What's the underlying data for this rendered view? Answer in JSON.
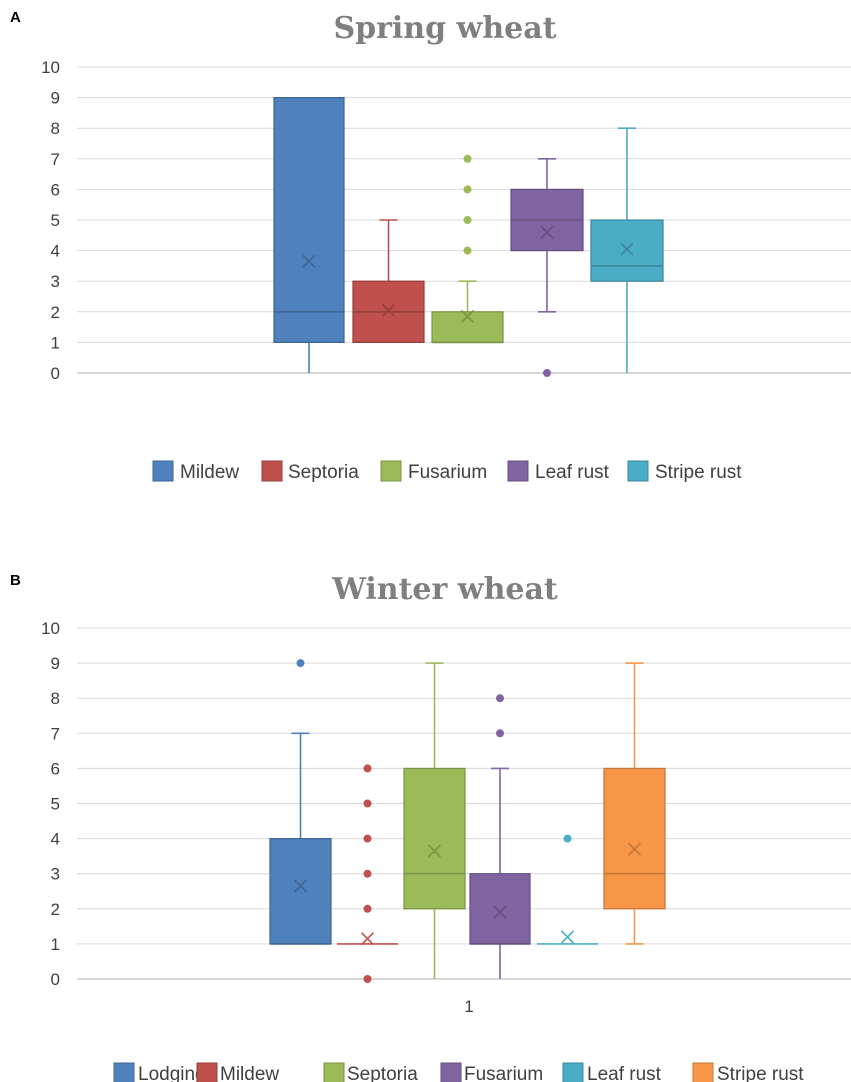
{
  "chart_data": [
    {
      "panel": "A",
      "type": "box",
      "title": "Spring wheat",
      "xlabel": "",
      "ylabel": "",
      "ylim": [
        0,
        10
      ],
      "yticks": [
        0,
        1,
        2,
        3,
        4,
        5,
        6,
        7,
        8,
        9,
        10
      ],
      "xticklabel": "",
      "grid": true,
      "legend_position": "bottom",
      "series": [
        {
          "name": "Mildew",
          "color": "#4f81bd",
          "min": 0,
          "q1": 1,
          "median": 2,
          "q3": 9,
          "max": 9,
          "mean": 3.65,
          "outliers": []
        },
        {
          "name": "Septoria",
          "color": "#c0504d",
          "min": 1,
          "q1": 1,
          "median": 2,
          "q3": 3,
          "max": 5,
          "mean": 2.05,
          "outliers": []
        },
        {
          "name": "Fusarium",
          "color": "#9bbb59",
          "min": 1,
          "q1": 1,
          "median": 1,
          "q3": 2,
          "max": 3,
          "mean": 1.85,
          "outliers": [
            4,
            5,
            6,
            7
          ]
        },
        {
          "name": "Leaf rust",
          "color": "#8064a2",
          "min": 2,
          "q1": 4,
          "median": 5,
          "q3": 6,
          "max": 7,
          "mean": 4.6,
          "outliers": [
            0
          ]
        },
        {
          "name": "Stripe rust",
          "color": "#4bacc6",
          "min": 0,
          "q1": 3,
          "median": 3.5,
          "q3": 5,
          "max": 8,
          "mean": 4.05,
          "outliers": []
        }
      ]
    },
    {
      "panel": "B",
      "type": "box",
      "title": "Winter wheat",
      "xlabel": "",
      "ylabel": "",
      "ylim": [
        0,
        10
      ],
      "yticks": [
        0,
        1,
        2,
        3,
        4,
        5,
        6,
        7,
        8,
        9,
        10
      ],
      "xticklabel": "1",
      "grid": true,
      "legend_position": "bottom",
      "series": [
        {
          "name": "Lodging",
          "color": "#4f81bd",
          "min": 1,
          "q1": 1,
          "median": 1,
          "q3": 4,
          "max": 7,
          "mean": 2.65,
          "outliers": [
            9
          ]
        },
        {
          "name": "Mildew",
          "color": "#c0504d",
          "min": 1,
          "q1": 1,
          "median": 1,
          "q3": 1,
          "max": 1,
          "mean": 1.15,
          "outliers": [
            0,
            2,
            3,
            4,
            5,
            6
          ]
        },
        {
          "name": "Septoria",
          "color": "#9bbb59",
          "min": 0,
          "q1": 2,
          "median": 3,
          "q3": 6,
          "max": 9,
          "mean": 3.65,
          "outliers": []
        },
        {
          "name": "Fusarium",
          "color": "#8064a2",
          "min": 0,
          "q1": 1,
          "median": 1,
          "q3": 3,
          "max": 6,
          "mean": 1.9,
          "outliers": [
            7,
            8
          ]
        },
        {
          "name": "Leaf rust",
          "color": "#4bacc6",
          "min": 1,
          "q1": 1,
          "median": 1,
          "q3": 1,
          "max": 1,
          "mean": 1.2,
          "outliers": [
            4
          ]
        },
        {
          "name": "Stripe rust",
          "color": "#f79646",
          "min": 1,
          "q1": 2,
          "median": 3,
          "q3": 6,
          "max": 9,
          "mean": 3.7,
          "outliers": []
        }
      ]
    }
  ]
}
